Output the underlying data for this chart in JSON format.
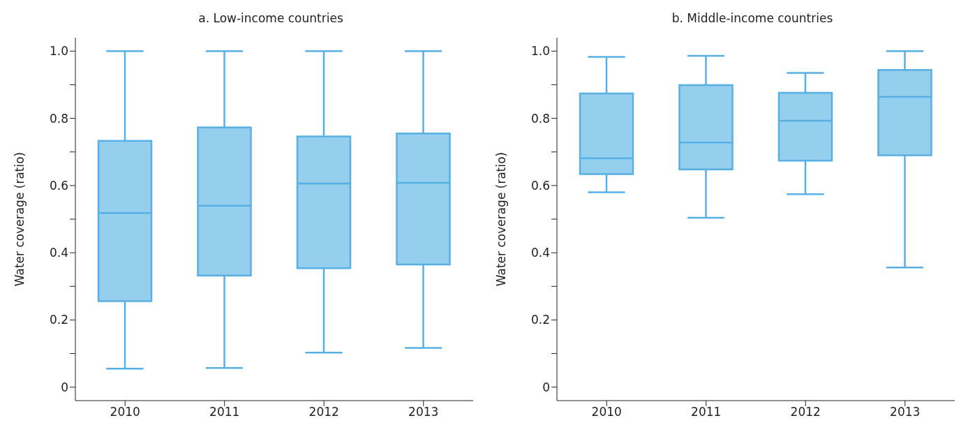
{
  "chart_data": [
    {
      "type": "box",
      "title": "a. Low-income countries",
      "ylabel": "Water coverage (ratio)",
      "categories": [
        "2010",
        "2011",
        "2012",
        "2013"
      ],
      "color": "#56b0e4",
      "ylim": [
        -0.04,
        1.04
      ],
      "yticks": [
        0,
        {
          "value": 0.1,
          "label": null
        },
        "0.2",
        {
          "value": 0.3,
          "label": null
        },
        0.4,
        {
          "value": 0.5,
          "label": null
        },
        0.6,
        {
          "value": 0.7,
          "label": null
        },
        0.8,
        {
          "value": 0.9,
          "label": null
        },
        {
          "value": 1,
          "label": "1.0"
        }
      ],
      "grid": false,
      "legend": false,
      "boxes": [
        {
          "low": 0.055,
          "q1": 0.256,
          "median": 0.518,
          "q3": 0.733,
          "high": 1.0
        },
        {
          "low": 0.057,
          "q1": 0.332,
          "median": 0.54,
          "q3": 0.773,
          "high": 1.0
        },
        {
          "low": 0.103,
          "q1": 0.354,
          "median": 0.606,
          "q3": 0.746,
          "high": 1.0
        },
        {
          "low": 0.117,
          "q1": 0.365,
          "median": 0.608,
          "q3": 0.755,
          "high": 1.0
        }
      ]
    },
    {
      "type": "box",
      "title": "b. Middle-income countries",
      "ylabel": "Water coverage (ratio)",
      "categories": [
        "2010",
        "2011",
        "2012",
        "2013"
      ],
      "color": "#56b0e4",
      "ylim": [
        -0.04,
        1.04
      ],
      "yticks": [
        0,
        {
          "value": 0.1,
          "label": null
        },
        0.2,
        {
          "value": 0.3,
          "label": null
        },
        0.4,
        {
          "value": 0.5,
          "label": null
        },
        0.6,
        {
          "value": 0.7,
          "label": null
        },
        0.8,
        {
          "value": 0.9,
          "label": null
        },
        {
          "value": 1,
          "label": "1.0"
        }
      ],
      "grid": false,
      "legend": false,
      "boxes": [
        {
          "low": 0.58,
          "q1": 0.634,
          "median": 0.681,
          "q3": 0.874,
          "high": 0.983
        },
        {
          "low": 0.504,
          "q1": 0.648,
          "median": 0.728,
          "q3": 0.899,
          "high": 0.986
        },
        {
          "low": 0.574,
          "q1": 0.674,
          "median": 0.793,
          "q3": 0.876,
          "high": 0.935
        },
        {
          "low": 0.356,
          "q1": 0.69,
          "median": 0.864,
          "q3": 0.944,
          "high": 1.0
        }
      ]
    }
  ]
}
